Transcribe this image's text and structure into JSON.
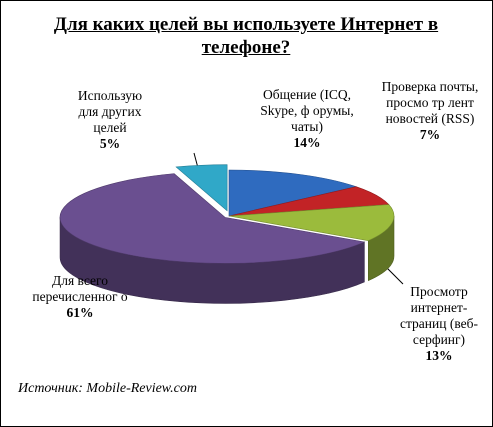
{
  "chart_data": {
    "type": "pie",
    "title": "Для каких целей вы используете Интернет в телефоне?",
    "slices": [
      {
        "label": "Общение (ICQ, Skype, ф орумы, чаты)",
        "value": 14,
        "value_label": "14%",
        "color": "#2f6bbf"
      },
      {
        "label": "Проверка почты, просмо тр лент новостей (RSS)",
        "value": 7,
        "value_label": "7%",
        "color": "#c22326"
      },
      {
        "label": "Просмотр интернет-страниц (веб-серфинг)",
        "value": 13,
        "value_label": "13%",
        "color": "#9bbb3c"
      },
      {
        "label": "Для всего перечисленног о",
        "value": 61,
        "value_label": "61%",
        "color": "#6a4f90"
      },
      {
        "label": "Использую для других целей",
        "value": 5,
        "value_label": "5%",
        "color": "#30a8c8"
      }
    ]
  },
  "source": "Источник: Mobile-Review.com"
}
